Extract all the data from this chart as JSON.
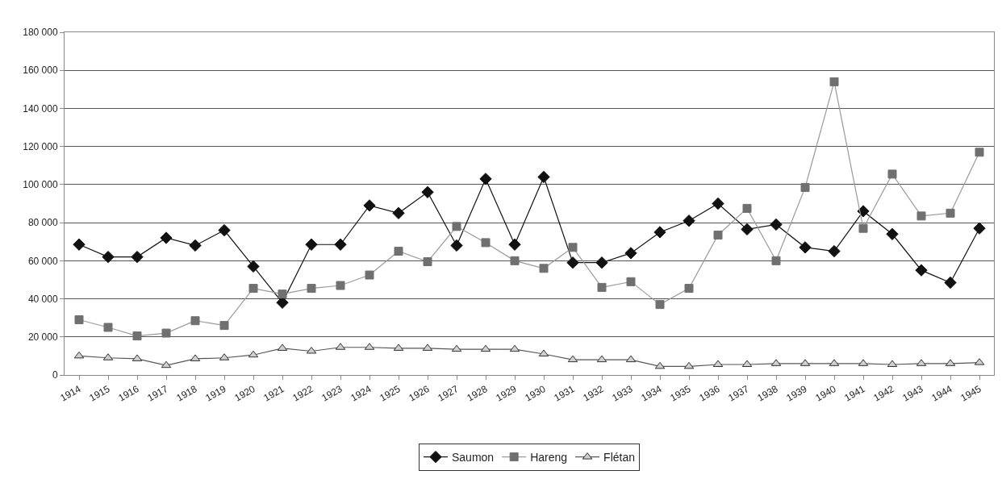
{
  "chart_data": {
    "type": "line",
    "categories": [
      "1914",
      "1915",
      "1916",
      "1917",
      "1918",
      "1919",
      "1920",
      "1921",
      "1922",
      "1923",
      "1924",
      "1925",
      "1926",
      "1927",
      "1928",
      "1929",
      "1930",
      "1931",
      "1932",
      "1933",
      "1934",
      "1935",
      "1936",
      "1937",
      "1938",
      "1939",
      "1940",
      "1941",
      "1942",
      "1943",
      "1944",
      "1945"
    ],
    "series": [
      {
        "name": "Saumon",
        "color": "#111111",
        "marker": "diamond",
        "values": [
          68500,
          62000,
          62000,
          72000,
          68000,
          76000,
          57000,
          38000,
          68500,
          68500,
          89000,
          85000,
          96000,
          68000,
          103000,
          68500,
          104000,
          59000,
          59000,
          64000,
          75000,
          81000,
          90000,
          76500,
          79000,
          67000,
          65000,
          86000,
          74000,
          55000,
          48500,
          77000
        ]
      },
      {
        "name": "Hareng",
        "color": "#707070",
        "marker": "square",
        "values": [
          29000,
          25000,
          20500,
          22000,
          28500,
          26000,
          45500,
          42500,
          45500,
          47000,
          52500,
          65000,
          59500,
          78000,
          69500,
          60000,
          56000,
          67000,
          46000,
          49000,
          37000,
          45500,
          73500,
          87500,
          60000,
          98500,
          154000,
          77000,
          105500,
          83500,
          85000,
          117000
        ]
      },
      {
        "name": "Flétan",
        "color": "#cfcfcf",
        "marker": "triangle",
        "values": [
          10000,
          9000,
          8500,
          5000,
          8500,
          9000,
          10500,
          14000,
          12500,
          14500,
          14500,
          14000,
          14000,
          13500,
          13500,
          13500,
          11000,
          8000,
          8000,
          8000,
          4500,
          4500,
          5500,
          5500,
          6000,
          6000,
          6000,
          6000,
          5500,
          6000,
          6000,
          6500
        ]
      }
    ],
    "ylim": [
      0,
      180000
    ],
    "yticks": [
      0,
      {
        "value": 20000,
        "label": "20 000"
      },
      {
        "value": 40000,
        "label": "40 000"
      },
      {
        "value": 60000,
        "label": "60 000"
      },
      {
        "value": 80000,
        "label": "80 000"
      },
      {
        "value": 100000,
        "label": "100 000"
      },
      {
        "value": 120000,
        "label": "120 000"
      },
      {
        "value": 140000,
        "label": "140 000"
      },
      {
        "value": 160000,
        "label": "160 000"
      },
      {
        "value": 180000,
        "label": "180 000"
      }
    ],
    "grid": "y",
    "legend": "bottom",
    "line_style": "solid"
  }
}
